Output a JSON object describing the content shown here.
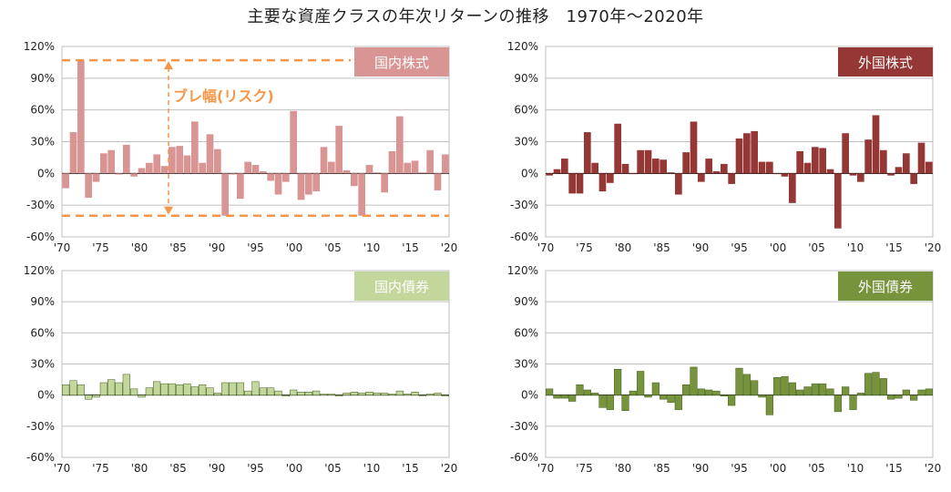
{
  "title": "主要な資産クラスの年次リターンの推移　1970年～2020年",
  "colors": {
    "domestic_stock": "#d99594",
    "foreign_stock": "#953735",
    "domestic_bond": "#c3d69b",
    "foreign_bond": "#77933c",
    "risk_annotation": "#f79646",
    "grid": "#bfbfbf"
  },
  "annotation": {
    "label": "ブレ幅(リスク)",
    "upper": 107,
    "lower": -40
  },
  "chart_data": [
    {
      "type": "bar",
      "label": "国内株式",
      "x": [
        1970,
        1971,
        1972,
        1973,
        1974,
        1975,
        1976,
        1977,
        1978,
        1979,
        1980,
        1981,
        1982,
        1983,
        1984,
        1985,
        1986,
        1987,
        1988,
        1989,
        1990,
        1991,
        1992,
        1993,
        1994,
        1995,
        1996,
        1997,
        1998,
        1999,
        2000,
        2001,
        2002,
        2003,
        2004,
        2005,
        2006,
        2007,
        2008,
        2009,
        2010,
        2011,
        2012,
        2013,
        2014,
        2015,
        2016,
        2017,
        2018,
        2019,
        2020
      ],
      "values": [
        -14,
        39,
        107,
        -23,
        -8,
        19,
        22,
        -1,
        27,
        -3,
        5,
        10,
        18,
        7,
        25,
        26,
        17,
        49,
        10,
        37,
        23,
        -40,
        -1,
        -24,
        11,
        8,
        2,
        -7,
        -20,
        -8,
        59,
        -25,
        -20,
        -17,
        25,
        11,
        45,
        3,
        -12,
        -40,
        8,
        1,
        -18,
        21,
        54,
        10,
        12,
        1,
        22,
        -16,
        18
      ],
      "xlabels": [
        "'70",
        "'75",
        "'80",
        "'85",
        "'90",
        "'95",
        "'00",
        "'05",
        "'10",
        "'15",
        "'20"
      ],
      "ylabels": [
        "120%",
        "90%",
        "60%",
        "30%",
        "0%",
        "-30%",
        "-60%"
      ],
      "ylim": [
        -60,
        120
      ]
    },
    {
      "type": "bar",
      "label": "外国株式",
      "x": [
        1970,
        1971,
        1972,
        1973,
        1974,
        1975,
        1976,
        1977,
        1978,
        1979,
        1980,
        1981,
        1982,
        1983,
        1984,
        1985,
        1986,
        1987,
        1988,
        1989,
        1990,
        1991,
        1992,
        1993,
        1994,
        1995,
        1996,
        1997,
        1998,
        1999,
        2000,
        2001,
        2002,
        2003,
        2004,
        2005,
        2006,
        2007,
        2008,
        2009,
        2010,
        2011,
        2012,
        2013,
        2014,
        2015,
        2016,
        2017,
        2018,
        2019,
        2020
      ],
      "values": [
        -2,
        4,
        14,
        -19,
        -19,
        39,
        10,
        -17,
        -9,
        47,
        9,
        0,
        22,
        22,
        14,
        13,
        1,
        -20,
        20,
        49,
        -8,
        14,
        2,
        9,
        -10,
        33,
        38,
        40,
        11,
        11,
        0,
        -3,
        -28,
        21,
        10,
        25,
        24,
        4,
        -52,
        38,
        -2,
        -8,
        32,
        55,
        22,
        -2,
        6,
        19,
        -10,
        29,
        11
      ],
      "xlabels": [
        "'70",
        "'75",
        "'80",
        "'85",
        "'90",
        "'95",
        "'00",
        "'05",
        "'10",
        "'15",
        "'20"
      ],
      "ylabels": [
        "120%",
        "90%",
        "60%",
        "30%",
        "0%",
        "-30%",
        "-60%"
      ],
      "ylim": [
        -60,
        120
      ]
    },
    {
      "type": "bar",
      "label": "国内債券",
      "x": [
        1970,
        1971,
        1972,
        1973,
        1974,
        1975,
        1976,
        1977,
        1978,
        1979,
        1980,
        1981,
        1982,
        1983,
        1984,
        1985,
        1986,
        1987,
        1988,
        1989,
        1990,
        1991,
        1992,
        1993,
        1994,
        1995,
        1996,
        1997,
        1998,
        1999,
        2000,
        2001,
        2002,
        2003,
        2004,
        2005,
        2006,
        2007,
        2008,
        2009,
        2010,
        2011,
        2012,
        2013,
        2014,
        2015,
        2016,
        2017,
        2018,
        2019,
        2020
      ],
      "values": [
        10,
        14,
        10,
        -4,
        -2,
        12,
        15,
        12,
        20,
        6,
        -2,
        7,
        13,
        11,
        11,
        10,
        11,
        8,
        10,
        7,
        2,
        12,
        12,
        12,
        4,
        13,
        7,
        7,
        4,
        -1,
        5,
        3,
        3,
        4,
        1,
        1,
        -1,
        2,
        3,
        2,
        3,
        2,
        2,
        1,
        4,
        1,
        3,
        0,
        1,
        2,
        -1
      ],
      "xlabels": [
        "'70",
        "'75",
        "'80",
        "'85",
        "'90",
        "'95",
        "'00",
        "'05",
        "'10",
        "'15",
        "'20"
      ],
      "ylabels": [
        "120%",
        "90%",
        "60%",
        "30%",
        "0%",
        "-30%",
        "-60%"
      ],
      "ylim": [
        -60,
        120
      ]
    },
    {
      "type": "bar",
      "label": "外国債券",
      "x": [
        1970,
        1971,
        1972,
        1973,
        1974,
        1975,
        1976,
        1977,
        1978,
        1979,
        1980,
        1981,
        1982,
        1983,
        1984,
        1985,
        1986,
        1987,
        1988,
        1989,
        1990,
        1991,
        1992,
        1993,
        1994,
        1995,
        1996,
        1997,
        1998,
        1999,
        2000,
        2001,
        2002,
        2003,
        2004,
        2005,
        2006,
        2007,
        2008,
        2009,
        2010,
        2011,
        2012,
        2013,
        2014,
        2015,
        2016,
        2017,
        2018,
        2019,
        2020
      ],
      "values": [
        6,
        -3,
        -3,
        -6,
        10,
        5,
        2,
        -12,
        -14,
        25,
        -15,
        4,
        23,
        -2,
        12,
        -4,
        -7,
        -14,
        10,
        27,
        6,
        5,
        4,
        -1,
        -10,
        26,
        20,
        14,
        -2,
        -19,
        17,
        18,
        12,
        5,
        8,
        11,
        11,
        6,
        -16,
        8,
        -14,
        2,
        21,
        22,
        16,
        -4,
        -3,
        5,
        -5,
        5,
        6
      ],
      "xlabels": [
        "'70",
        "'75",
        "'80",
        "'85",
        "'90",
        "'95",
        "'00",
        "'05",
        "'10",
        "'15",
        "'20"
      ],
      "ylabels": [
        "120%",
        "90%",
        "60%",
        "30%",
        "0%",
        "-30%",
        "-60%"
      ],
      "ylim": [
        -60,
        120
      ]
    }
  ]
}
